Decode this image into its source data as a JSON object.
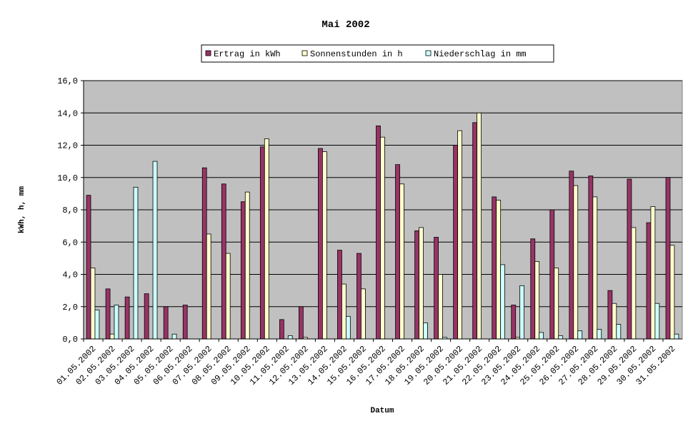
{
  "chart_data": {
    "type": "bar",
    "title": "Mai 2002",
    "x_label": "Datum",
    "y_label": "kWh, h, mm",
    "categories": [
      "01.05.2002",
      "02.05.2002",
      "03.05.2002",
      "04.05.2002",
      "05.05.2002",
      "06.05.2002",
      "07.05.2002",
      "08.05.2002",
      "09.05.2002",
      "10.05.2002",
      "11.05.2002",
      "12.05.2002",
      "13.05.2002",
      "14.05.2002",
      "15.05.2002",
      "16.05.2002",
      "17.05.2002",
      "18.05.2002",
      "19.05.2002",
      "20.05.2002",
      "21.05.2002",
      "22.05.2002",
      "23.05.2002",
      "24.05.2002",
      "25.05.2002",
      "26.05.2002",
      "27.05.2002",
      "28.05.2002",
      "29.05.2002",
      "30.05.2002",
      "31.05.2002"
    ],
    "series": [
      {
        "name": "Ertrag in kWh",
        "color": "#993366",
        "values": [
          8.9,
          3.1,
          2.6,
          2.8,
          2.0,
          2.1,
          10.6,
          9.6,
          8.5,
          11.9,
          1.2,
          2.0,
          11.8,
          5.5,
          5.3,
          13.2,
          10.8,
          6.7,
          6.3,
          12.0,
          13.4,
          8.8,
          2.1,
          6.2,
          8.0,
          10.4,
          10.1,
          3.0,
          9.9,
          7.2,
          10.0
        ]
      },
      {
        "name": "Sonnenstunden in h",
        "color": "#ffffcc",
        "values": [
          4.4,
          0.3,
          0,
          0,
          0,
          0,
          6.5,
          5.3,
          9.1,
          12.4,
          0,
          0.1,
          11.6,
          3.4,
          3.1,
          12.5,
          9.6,
          6.9,
          4.0,
          12.9,
          14.0,
          8.6,
          0.1,
          4.8,
          4.4,
          9.5,
          8.8,
          2.2,
          6.9,
          8.2,
          5.8
        ]
      },
      {
        "name": "Niederschlag in mm",
        "color": "#ccffff",
        "values": [
          1.8,
          2.1,
          9.4,
          11.0,
          0.3,
          0,
          0,
          0,
          0,
          0,
          0.2,
          0,
          0,
          1.4,
          0,
          0,
          0,
          1.0,
          0.1,
          0,
          0,
          4.6,
          3.3,
          0.4,
          0.2,
          0.5,
          0.6,
          0.9,
          0,
          2.2,
          0.3
        ]
      }
    ],
    "ylim": [
      0,
      16
    ],
    "yticks": [
      {
        "value": 0,
        "label": "0,0"
      },
      {
        "value": 2,
        "label": "2,0"
      },
      {
        "value": 4,
        "label": "4,0"
      },
      {
        "value": 6,
        "label": "6,0"
      },
      {
        "value": 8,
        "label": "8,0"
      },
      {
        "value": 10,
        "label": "10,0"
      },
      {
        "value": 12,
        "label": "12,0"
      },
      {
        "value": 14,
        "label": "14,0"
      },
      {
        "value": 16,
        "label": "16,0"
      }
    ],
    "grid": true,
    "plot_background": "#c0c0c0",
    "legend": "top"
  }
}
